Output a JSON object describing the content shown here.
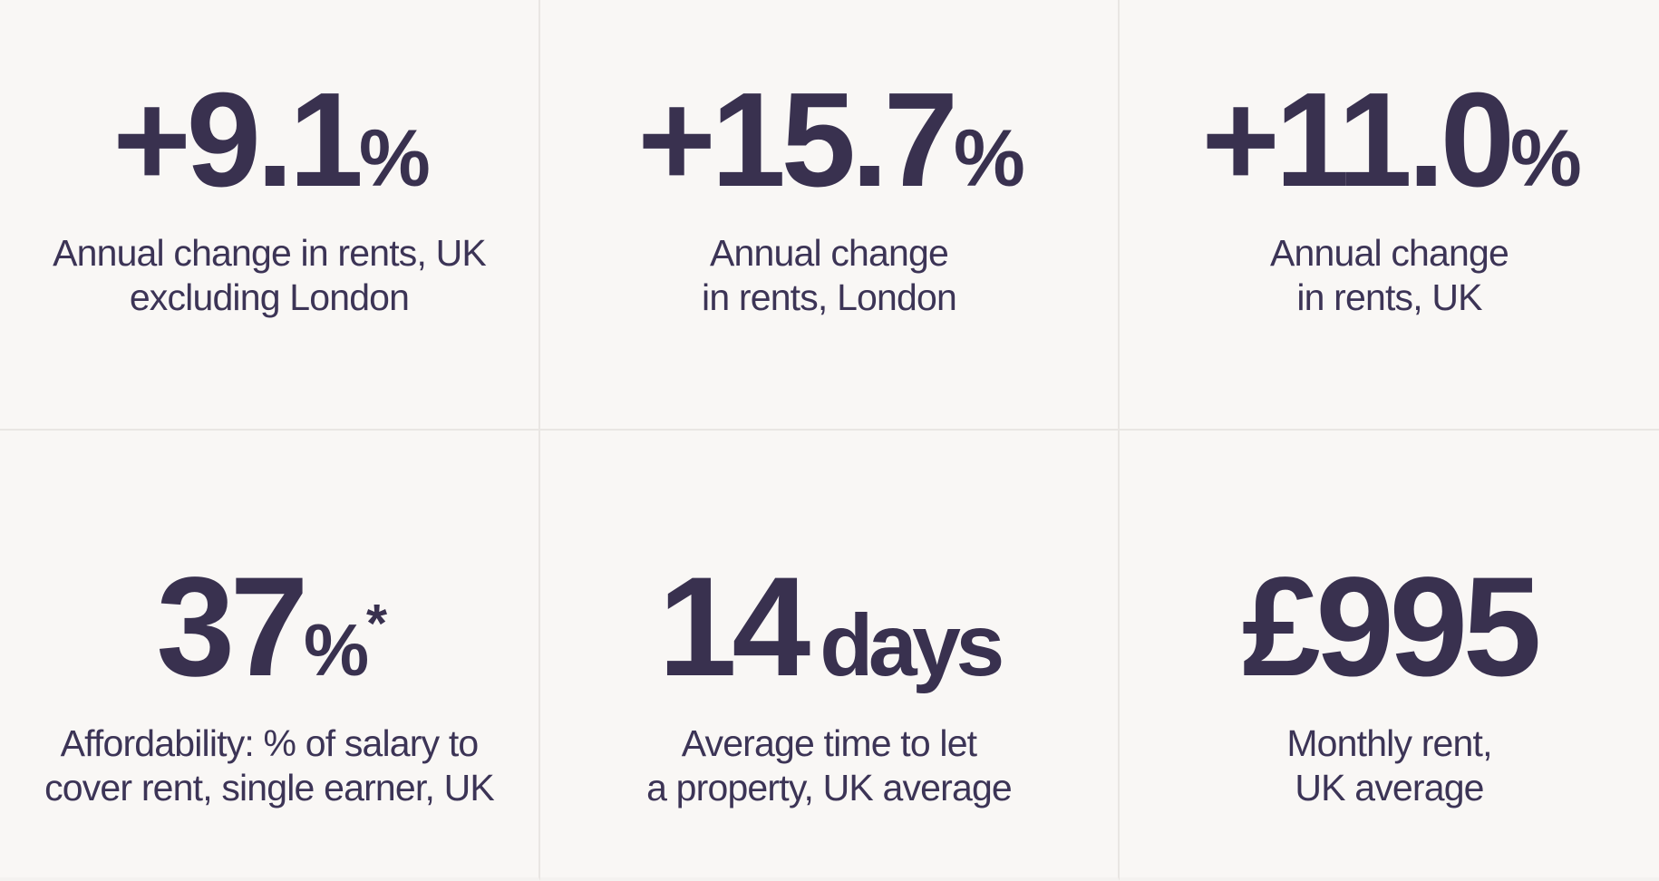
{
  "theme": {
    "background_color": "#f9f7f5",
    "divider_color": "#e9e6e3",
    "number_color": "#39314f",
    "label_color": "#3c3456"
  },
  "stats": [
    {
      "value": "+9.1",
      "unit": "%",
      "label_line1": "Annual change in rents, UK",
      "label_line2": "excluding London"
    },
    {
      "value": "+15.7",
      "unit": "%",
      "label_line1": "Annual change",
      "label_line2": "in rents, London"
    },
    {
      "value": "+11.0",
      "unit": "%",
      "label_line1": "Annual change",
      "label_line2": "in rents, UK"
    },
    {
      "value": "37",
      "unit": "%",
      "star": "*",
      "label_line1": "Affordability: % of salary to",
      "label_line2": "cover rent, single earner, UK"
    },
    {
      "value": "14",
      "word": "days",
      "label_line1": "Average time to let",
      "label_line2": "a property, UK average"
    },
    {
      "value": "£995",
      "label_line1": "Monthly rent,",
      "label_line2": "UK average"
    }
  ],
  "chart_data": {
    "type": "table",
    "columns": [
      "value",
      "unit",
      "label"
    ],
    "rows": [
      [
        9.1,
        "% (annual change)",
        "Annual change in rents, UK excluding London"
      ],
      [
        15.7,
        "% (annual change)",
        "Annual change in rents, London"
      ],
      [
        11.0,
        "% (annual change)",
        "Annual change in rents, UK"
      ],
      [
        37,
        "%*",
        "Affordability: % of salary to cover rent, single earner, UK"
      ],
      [
        14,
        "days",
        "Average time to let a property, UK average"
      ],
      [
        995,
        "£ per month",
        "Monthly rent, UK average"
      ]
    ],
    "layout": "3x2 grid of big-number stat cards, light background, dark indigo text, thin dividers"
  }
}
